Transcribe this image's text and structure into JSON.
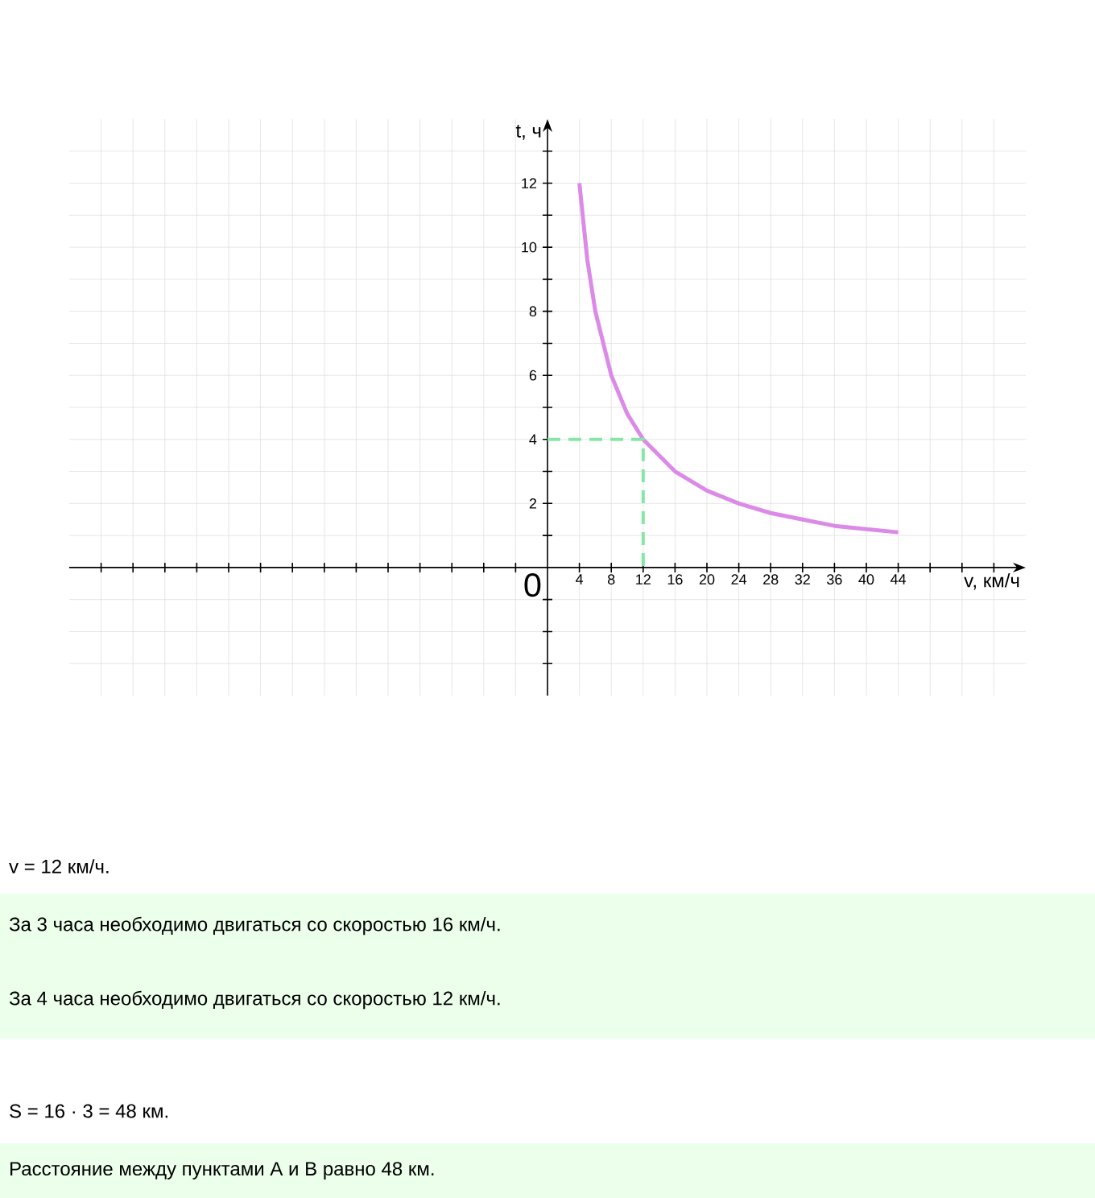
{
  "chart_data": {
    "type": "line",
    "xlabel": "v, км/ч",
    "ylabel": "t, ч",
    "series": [
      {
        "color": "#dc8ae8",
        "line_style": "solid",
        "x": [
          4,
          5,
          6,
          8,
          10,
          12,
          16,
          20,
          24,
          28,
          32,
          36,
          40,
          44
        ],
        "values": [
          12,
          9.6,
          8,
          6,
          4.8,
          4,
          3,
          2.4,
          2,
          1.7,
          1.5,
          1.3,
          1.2,
          1.1
        ]
      },
      {
        "color": "#86e6a6",
        "line_style": "dashed",
        "x": [
          0,
          12,
          12
        ],
        "values": [
          4,
          4,
          0
        ]
      }
    ],
    "xlim": [
      -60,
      60
    ],
    "ylim": [
      -4,
      14
    ],
    "xticks": [
      {
        "value": -56,
        "label": null
      },
      {
        "value": -52,
        "label": null
      },
      {
        "value": -48,
        "label": null
      },
      {
        "value": -44,
        "label": null
      },
      {
        "value": -40,
        "label": null
      },
      {
        "value": -36,
        "label": null
      },
      {
        "value": -32,
        "label": null
      },
      {
        "value": -28,
        "label": null
      },
      {
        "value": -24,
        "label": null
      },
      {
        "value": -20,
        "label": null
      },
      {
        "value": -16,
        "label": null
      },
      {
        "value": -12,
        "label": null
      },
      {
        "value": -8,
        "label": null
      },
      {
        "value": -4,
        "label": null
      },
      4,
      8,
      12,
      16,
      20,
      24,
      28,
      32,
      36,
      40,
      44,
      {
        "value": 48,
        "label": null
      },
      {
        "value": 52,
        "label": null
      },
      {
        "value": 56,
        "label": null
      }
    ],
    "yticks": [
      {
        "value": -3,
        "label": null
      },
      {
        "value": -2,
        "label": null
      },
      {
        "value": -1,
        "label": null
      },
      {
        "value": 1,
        "label": null
      },
      2,
      {
        "value": 3,
        "label": null
      },
      4,
      {
        "value": 5,
        "label": null
      },
      6,
      {
        "value": 7,
        "label": null
      },
      8,
      {
        "value": 9,
        "label": null
      },
      10,
      {
        "value": 11,
        "label": null
      },
      12,
      {
        "value": 13,
        "label": null
      }
    ],
    "grid": true,
    "marker": "none",
    "annotations": [
      "0",
      "v = 12 км/ч.",
      "За 3 часа необходимо двигаться со скоростью 16 км/ч.",
      "За 4 часа необходимо двигаться со скоростью 12 км/ч.",
      "S = 16 · 3 = 48 км.",
      "Расстояние между пунктами А и В равно 48 км."
    ]
  }
}
